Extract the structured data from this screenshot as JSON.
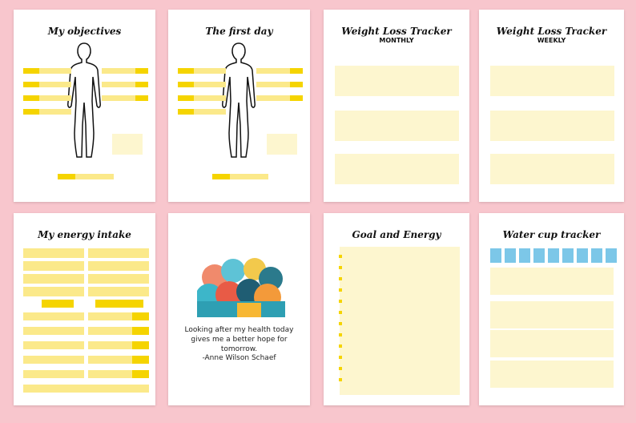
{
  "pages": [
    {
      "title": "My objectives"
    },
    {
      "title": "The first day"
    },
    {
      "title": "Weight Loss Tracker",
      "subtitle": "MONTHLY"
    },
    {
      "title": "Weight Loss Tracker",
      "subtitle": "WEEKLY"
    },
    {
      "title": "My energy intake"
    },
    {
      "quote": "Looking after my health today gives me a better hope for tomorrow.",
      "author": "-Anne Wilson Schaef"
    },
    {
      "title": "Goal and Energy"
    },
    {
      "title": "Water cup tracker"
    }
  ]
}
